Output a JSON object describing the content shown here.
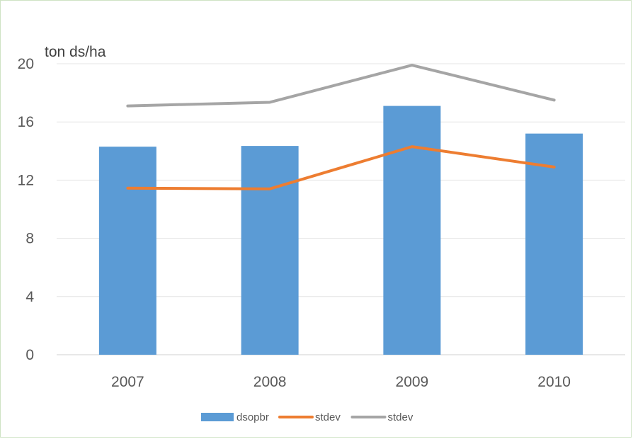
{
  "chart_data": {
    "type": "bar",
    "title": "",
    "xlabel": "",
    "ylabel": "ton ds/ha",
    "categories": [
      "2007",
      "2008",
      "2009",
      "2010"
    ],
    "ylim": [
      0,
      20
    ],
    "yticks": [
      "0",
      "4",
      "8",
      "12",
      "16",
      "20"
    ],
    "grid": "horizontal",
    "legend_position": "bottom",
    "series": [
      {
        "name": "dsopbr",
        "kind": "bar",
        "color": "#5b9bd5",
        "values": [
          14.3,
          14.35,
          17.1,
          15.2
        ]
      },
      {
        "name": "stdev",
        "kind": "line",
        "color": "#ed7d31",
        "values": [
          11.45,
          11.4,
          14.3,
          12.9
        ]
      },
      {
        "name": "stdev",
        "kind": "line",
        "color": "#a5a5a5",
        "values": [
          17.1,
          17.35,
          19.9,
          17.5
        ]
      }
    ]
  }
}
